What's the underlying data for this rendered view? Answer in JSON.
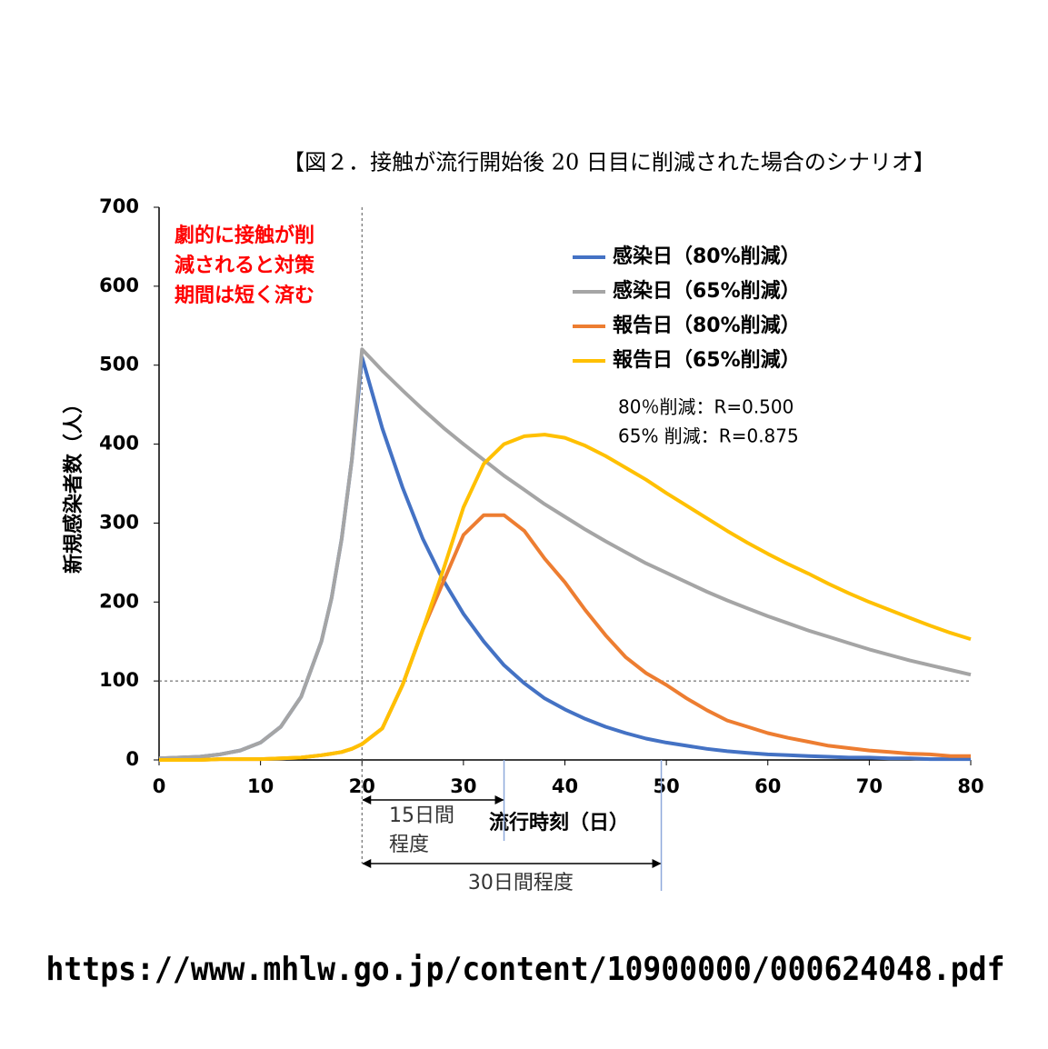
{
  "chart_data": {
    "type": "line",
    "title": "【図２．接触が流行開始後 20 日目に削減された場合のシナリオ】",
    "xlabel": "流行時刻（日）",
    "ylabel": "新規感染者数（人）",
    "x": [
      0,
      2,
      4,
      6,
      8,
      10,
      12,
      14,
      16,
      17,
      18,
      19,
      20,
      22,
      24,
      26,
      28,
      30,
      32,
      34,
      36,
      38,
      40,
      42,
      44,
      46,
      48,
      50,
      52,
      54,
      56,
      58,
      60,
      62,
      64,
      66,
      68,
      70,
      72,
      74,
      76,
      78,
      80
    ],
    "series": [
      {
        "name": "感染日（80%削減）",
        "color": "#4472c4",
        "values": [
          2,
          3,
          4,
          7,
          12,
          22,
          42,
          80,
          150,
          205,
          280,
          380,
          510,
          420,
          345,
          280,
          228,
          185,
          150,
          120,
          97,
          78,
          64,
          52,
          42,
          34,
          27,
          22,
          18,
          14,
          11,
          9,
          7,
          6,
          5,
          4,
          3,
          3,
          2,
          2,
          1,
          1,
          1
        ]
      },
      {
        "name": "感染日（65%削減）",
        "color": "#a5a5a5",
        "values": [
          2,
          3,
          4,
          7,
          12,
          22,
          42,
          80,
          150,
          205,
          280,
          380,
          520,
          493,
          468,
          444,
          421,
          400,
          380,
          360,
          342,
          324,
          308,
          292,
          277,
          263,
          249,
          237,
          225,
          213,
          202,
          192,
          182,
          173,
          164,
          156,
          148,
          140,
          133,
          126,
          120,
          114,
          108
        ]
      },
      {
        "name": "報告日（80%削減）",
        "color": "#ed7d31",
        "values": [
          0,
          0,
          0,
          1,
          1,
          1,
          2,
          3,
          6,
          8,
          10,
          14,
          20,
          40,
          95,
          165,
          225,
          285,
          310,
          310,
          290,
          255,
          225,
          190,
          158,
          130,
          110,
          95,
          78,
          63,
          50,
          42,
          34,
          28,
          23,
          18,
          15,
          12,
          10,
          8,
          7,
          5,
          5
        ]
      },
      {
        "name": "報告日（65%削減）",
        "color": "#ffc000",
        "values": [
          0,
          0,
          0,
          1,
          1,
          1,
          2,
          3,
          6,
          8,
          10,
          14,
          20,
          40,
          95,
          165,
          240,
          320,
          375,
          400,
          410,
          412,
          408,
          398,
          385,
          370,
          355,
          338,
          322,
          306,
          290,
          275,
          261,
          248,
          236,
          223,
          211,
          200,
          190,
          180,
          170,
          161,
          153
        ]
      }
    ],
    "xlim": [
      0,
      80
    ],
    "ylim": [
      0,
      700
    ],
    "xticks": [
      0,
      10,
      20,
      30,
      40,
      50,
      60,
      70,
      80
    ],
    "yticks": [
      0,
      100,
      200,
      300,
      400,
      500,
      600,
      700
    ],
    "grid": false,
    "reference_lines": {
      "x": 20,
      "y": 100
    },
    "note": [
      "劇的に接触が削",
      "減されると対策",
      "期間は短く済む"
    ],
    "r_notes": [
      "80％削減：R=0.500",
      "65% 削減：R=0.875"
    ],
    "spans": [
      {
        "lines": [
          "15日間",
          "程度"
        ],
        "from": 20,
        "to": 34
      },
      {
        "lines": [
          "30日間程度"
        ],
        "from": 20,
        "to": 49.5
      }
    ],
    "source": "https://www.mhlw.go.jp/content/10900000/000624048.pdf"
  }
}
